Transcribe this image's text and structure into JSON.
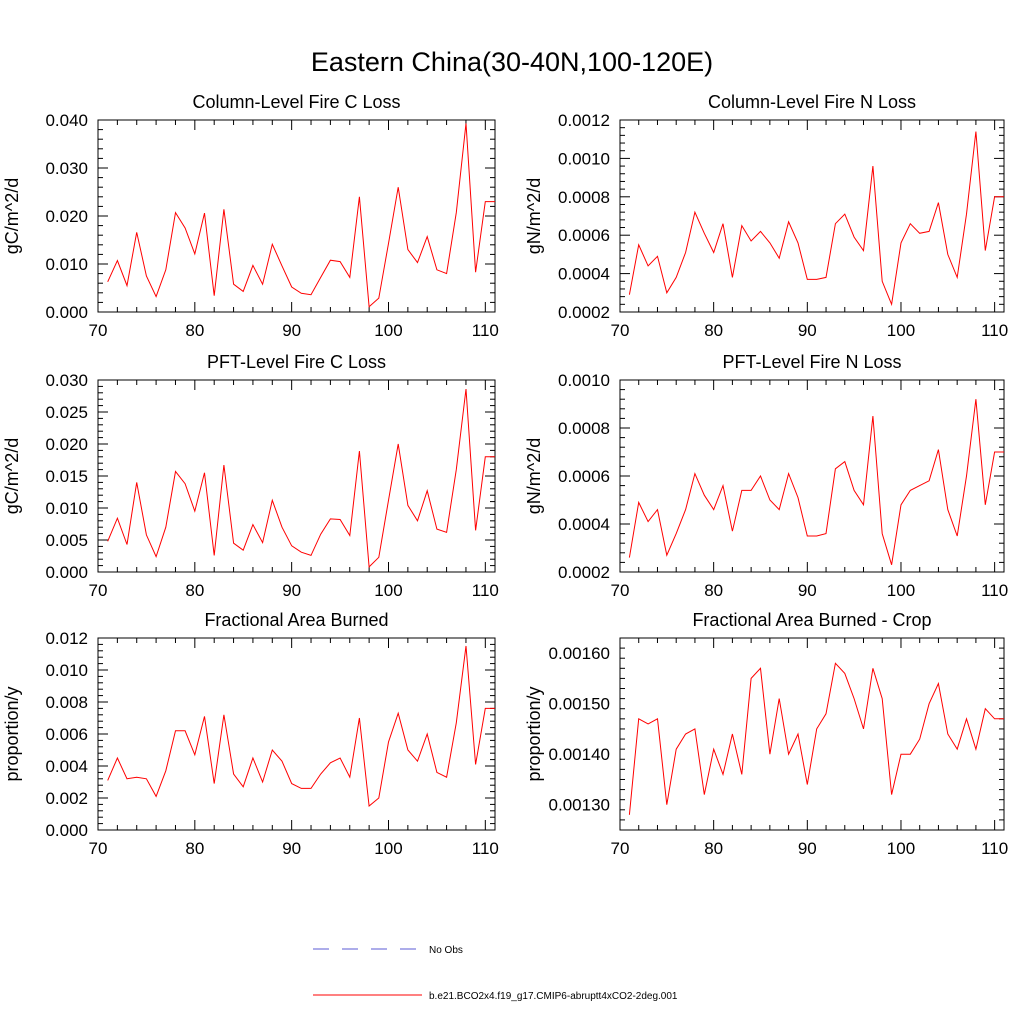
{
  "title": "Eastern China(30-40N,100-120E)",
  "legend": {
    "entries": [
      {
        "label": "No Obs",
        "color": "#5b5bd6",
        "style": "dashed"
      },
      {
        "label": "b.e21.BCO2x4.f19_g17.CMIP6-abruptt4xCO2-2deg.001",
        "color": "#ff0000",
        "style": "solid"
      }
    ]
  },
  "chart_data": [
    {
      "type": "line",
      "title": "Column-Level Fire C Loss",
      "ylabel": "gC/m^2/d",
      "xlim": [
        70,
        111
      ],
      "ylim": [
        0.0,
        0.04
      ],
      "xticks": [
        70,
        80,
        90,
        100,
        110
      ],
      "yticks": [
        0.0,
        0.01,
        0.02,
        0.03,
        0.04
      ],
      "ytick_labels": [
        "0.000",
        "0.010",
        "0.020",
        "0.030",
        "0.040"
      ],
      "x": [
        71,
        72,
        73,
        74,
        75,
        76,
        77,
        78,
        79,
        80,
        81,
        82,
        83,
        84,
        85,
        86,
        87,
        88,
        89,
        90,
        91,
        92,
        93,
        94,
        95,
        96,
        97,
        98,
        99,
        100,
        101,
        102,
        103,
        104,
        105,
        106,
        107,
        108,
        109,
        110,
        111
      ],
      "series": [
        {
          "name": "b.e21.BCO2x4.f19_g17.CMIP6-abruptt4xCO2-2deg.001",
          "color": "#ff0000",
          "values": [
            0.0063,
            0.0107,
            0.0055,
            0.0166,
            0.0075,
            0.0032,
            0.0088,
            0.0207,
            0.0175,
            0.0121,
            0.0206,
            0.0034,
            0.0214,
            0.0058,
            0.0043,
            0.0097,
            0.0058,
            0.0141,
            0.0096,
            0.0052,
            0.0039,
            0.0036,
            0.0072,
            0.0108,
            0.0105,
            0.0072,
            0.024,
            0.0011,
            0.0029,
            0.0143,
            0.026,
            0.013,
            0.0103,
            0.0157,
            0.0088,
            0.008,
            0.0207,
            0.0393,
            0.0083,
            0.023,
            0.023
          ]
        }
      ]
    },
    {
      "type": "line",
      "title": "Column-Level Fire N Loss",
      "ylabel": "gN/m^2/d",
      "xlim": [
        70,
        111
      ],
      "ylim": [
        0.0002,
        0.0012
      ],
      "xticks": [
        70,
        80,
        90,
        100,
        110
      ],
      "yticks": [
        0.0002,
        0.0004,
        0.0006,
        0.0008,
        0.001,
        0.0012
      ],
      "ytick_labels": [
        "0.0002",
        "0.0004",
        "0.0006",
        "0.0008",
        "0.0010",
        "0.0012"
      ],
      "x": [
        71,
        72,
        73,
        74,
        75,
        76,
        77,
        78,
        79,
        80,
        81,
        82,
        83,
        84,
        85,
        86,
        87,
        88,
        89,
        90,
        91,
        92,
        93,
        94,
        95,
        96,
        97,
        98,
        99,
        100,
        101,
        102,
        103,
        104,
        105,
        106,
        107,
        108,
        109,
        110,
        111
      ],
      "series": [
        {
          "name": "b.e21.BCO2x4.f19_g17.CMIP6-abruptt4xCO2-2deg.001",
          "color": "#ff0000",
          "values": [
            0.00029,
            0.00055,
            0.00044,
            0.00049,
            0.0003,
            0.00038,
            0.00051,
            0.00072,
            0.00061,
            0.00051,
            0.00066,
            0.00038,
            0.00065,
            0.00057,
            0.00062,
            0.00056,
            0.00048,
            0.00067,
            0.00056,
            0.00037,
            0.00037,
            0.00038,
            0.00066,
            0.00071,
            0.00059,
            0.00052,
            0.00096,
            0.00036,
            0.00024,
            0.00056,
            0.00066,
            0.00061,
            0.00062,
            0.00077,
            0.0005,
            0.00038,
            0.00071,
            0.00114,
            0.00052,
            0.0008,
            0.0008
          ]
        }
      ]
    },
    {
      "type": "line",
      "title": "PFT-Level Fire C Loss",
      "ylabel": "gC/m^2/d",
      "xlim": [
        70,
        111
      ],
      "ylim": [
        0.0,
        0.03
      ],
      "xticks": [
        70,
        80,
        90,
        100,
        110
      ],
      "yticks": [
        0.0,
        0.005,
        0.01,
        0.015,
        0.02,
        0.025,
        0.03
      ],
      "ytick_labels": [
        "0.000",
        "0.005",
        "0.010",
        "0.015",
        "0.020",
        "0.025",
        "0.030"
      ],
      "x": [
        71,
        72,
        73,
        74,
        75,
        76,
        77,
        78,
        79,
        80,
        81,
        82,
        83,
        84,
        85,
        86,
        87,
        88,
        89,
        90,
        91,
        92,
        93,
        94,
        95,
        96,
        97,
        98,
        99,
        100,
        101,
        102,
        103,
        104,
        105,
        106,
        107,
        108,
        109,
        110,
        111
      ],
      "series": [
        {
          "name": "b.e21.BCO2x4.f19_g17.CMIP6-abruptt4xCO2-2deg.001",
          "color": "#ff0000",
          "values": [
            0.0048,
            0.0084,
            0.0043,
            0.014,
            0.0058,
            0.0024,
            0.007,
            0.0157,
            0.0138,
            0.0095,
            0.0155,
            0.0026,
            0.0167,
            0.0045,
            0.0034,
            0.0074,
            0.0046,
            0.0112,
            0.007,
            0.0041,
            0.0031,
            0.0026,
            0.0059,
            0.0083,
            0.0082,
            0.0057,
            0.0189,
            0.0008,
            0.0023,
            0.0112,
            0.02,
            0.0104,
            0.008,
            0.0127,
            0.0067,
            0.0062,
            0.016,
            0.0286,
            0.0065,
            0.018,
            0.018
          ]
        }
      ]
    },
    {
      "type": "line",
      "title": "PFT-Level Fire N Loss",
      "ylabel": "gN/m^2/d",
      "xlim": [
        70,
        111
      ],
      "ylim": [
        0.0002,
        0.001
      ],
      "xticks": [
        70,
        80,
        90,
        100,
        110
      ],
      "yticks": [
        0.0002,
        0.0004,
        0.0006,
        0.0008,
        0.001
      ],
      "ytick_labels": [
        "0.0002",
        "0.0004",
        "0.0006",
        "0.0008",
        "0.0010"
      ],
      "x": [
        71,
        72,
        73,
        74,
        75,
        76,
        77,
        78,
        79,
        80,
        81,
        82,
        83,
        84,
        85,
        86,
        87,
        88,
        89,
        90,
        91,
        92,
        93,
        94,
        95,
        96,
        97,
        98,
        99,
        100,
        101,
        102,
        103,
        104,
        105,
        106,
        107,
        108,
        109,
        110,
        111
      ],
      "series": [
        {
          "name": "b.e21.BCO2x4.f19_g17.CMIP6-abruptt4xCO2-2deg.001",
          "color": "#ff0000",
          "values": [
            0.00026,
            0.00049,
            0.00041,
            0.00046,
            0.00027,
            0.00036,
            0.00046,
            0.00061,
            0.00052,
            0.00046,
            0.00056,
            0.00037,
            0.00054,
            0.00054,
            0.0006,
            0.0005,
            0.00046,
            0.00061,
            0.00051,
            0.00035,
            0.00035,
            0.00036,
            0.00063,
            0.00066,
            0.00054,
            0.00048,
            0.00085,
            0.00036,
            0.00023,
            0.00048,
            0.00054,
            0.00056,
            0.00058,
            0.00071,
            0.00046,
            0.00035,
            0.0006,
            0.00092,
            0.00048,
            0.0007,
            0.0007
          ]
        }
      ]
    },
    {
      "type": "line",
      "title": "Fractional Area Burned",
      "ylabel": "proportion/y",
      "xlim": [
        70,
        111
      ],
      "ylim": [
        0.0,
        0.012
      ],
      "xticks": [
        70,
        80,
        90,
        100,
        110
      ],
      "yticks": [
        0.0,
        0.002,
        0.004,
        0.006,
        0.008,
        0.01,
        0.012
      ],
      "ytick_labels": [
        "0.000",
        "0.002",
        "0.004",
        "0.006",
        "0.008",
        "0.010",
        "0.012"
      ],
      "x": [
        71,
        72,
        73,
        74,
        75,
        76,
        77,
        78,
        79,
        80,
        81,
        82,
        83,
        84,
        85,
        86,
        87,
        88,
        89,
        90,
        91,
        92,
        93,
        94,
        95,
        96,
        97,
        98,
        99,
        100,
        101,
        102,
        103,
        104,
        105,
        106,
        107,
        108,
        109,
        110,
        111
      ],
      "series": [
        {
          "name": "b.e21.BCO2x4.f19_g17.CMIP6-abruptt4xCO2-2deg.001",
          "color": "#ff0000",
          "values": [
            0.0031,
            0.0045,
            0.0032,
            0.0033,
            0.0032,
            0.0021,
            0.0037,
            0.0062,
            0.0062,
            0.0047,
            0.0071,
            0.0029,
            0.0072,
            0.0035,
            0.0027,
            0.0045,
            0.003,
            0.005,
            0.0043,
            0.0029,
            0.0026,
            0.0026,
            0.0035,
            0.0042,
            0.0045,
            0.0033,
            0.007,
            0.0015,
            0.002,
            0.0055,
            0.0073,
            0.005,
            0.0043,
            0.006,
            0.0036,
            0.0033,
            0.0067,
            0.0115,
            0.0041,
            0.0076,
            0.0076
          ]
        }
      ]
    },
    {
      "type": "line",
      "title": "Fractional Area Burned - Crop",
      "ylabel": "proportion/y",
      "xlim": [
        70,
        111
      ],
      "ylim": [
        0.00125,
        0.00163
      ],
      "xticks": [
        70,
        80,
        90,
        100,
        110
      ],
      "yticks": [
        0.0013,
        0.0014,
        0.0015,
        0.0016
      ],
      "ytick_labels": [
        "0.00130",
        "0.00140",
        "0.00150",
        "0.00160"
      ],
      "x": [
        71,
        72,
        73,
        74,
        75,
        76,
        77,
        78,
        79,
        80,
        81,
        82,
        83,
        84,
        85,
        86,
        87,
        88,
        89,
        90,
        91,
        92,
        93,
        94,
        95,
        96,
        97,
        98,
        99,
        100,
        101,
        102,
        103,
        104,
        105,
        106,
        107,
        108,
        109,
        110,
        111
      ],
      "series": [
        {
          "name": "b.e21.BCO2x4.f19_g17.CMIP6-abruptt4xCO2-2deg.001",
          "color": "#ff0000",
          "values": [
            0.00128,
            0.00147,
            0.00146,
            0.00147,
            0.0013,
            0.00141,
            0.00144,
            0.00145,
            0.00132,
            0.00141,
            0.00136,
            0.00144,
            0.00136,
            0.00155,
            0.00157,
            0.0014,
            0.00151,
            0.0014,
            0.00144,
            0.00134,
            0.00145,
            0.00148,
            0.00158,
            0.00156,
            0.00151,
            0.00145,
            0.00157,
            0.00151,
            0.00132,
            0.0014,
            0.0014,
            0.00143,
            0.0015,
            0.00154,
            0.00144,
            0.00141,
            0.00147,
            0.00141,
            0.00149,
            0.00147,
            0.00147
          ]
        }
      ]
    }
  ]
}
